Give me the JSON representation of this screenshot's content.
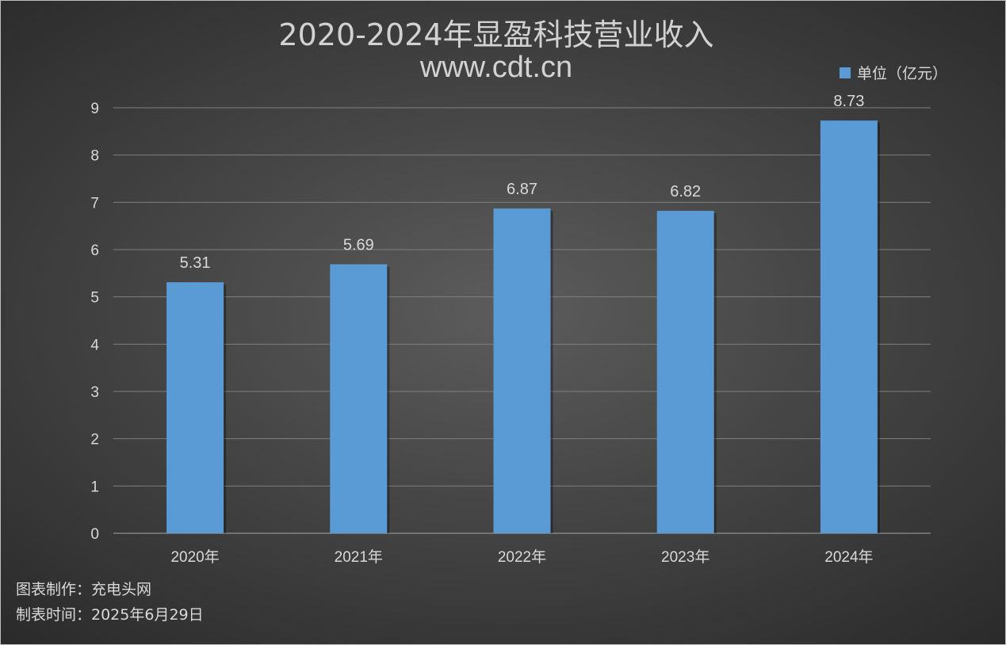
{
  "chart_data": {
    "type": "bar",
    "title": "2020-2024年显盈科技营业收入",
    "subtitle": "www.cdt.cn",
    "categories": [
      "2020年",
      "2021年",
      "2022年",
      "2023年",
      "2024年"
    ],
    "series": [
      {
        "name": "单位（亿元）",
        "values": [
          5.31,
          5.69,
          6.87,
          6.82,
          8.73
        ],
        "color": "#5b9bd5"
      }
    ],
    "data_labels": [
      "5.31",
      "5.69",
      "6.87",
      "6.82",
      "8.73"
    ],
    "ylim": [
      0,
      9
    ],
    "yticks": [
      "0",
      "1",
      "2",
      "3",
      "4",
      "5",
      "6",
      "7",
      "8",
      "9"
    ],
    "xlabel": "",
    "ylabel": "",
    "grid": true,
    "legend_position": "top-right"
  },
  "footer": {
    "maker": "图表制作：充电头网",
    "date": "制表时间：2025年6月29日"
  },
  "colors": {
    "bar": "#5b9bd5",
    "gridline": "#7f7f7f",
    "text": "#d9d9d9"
  }
}
